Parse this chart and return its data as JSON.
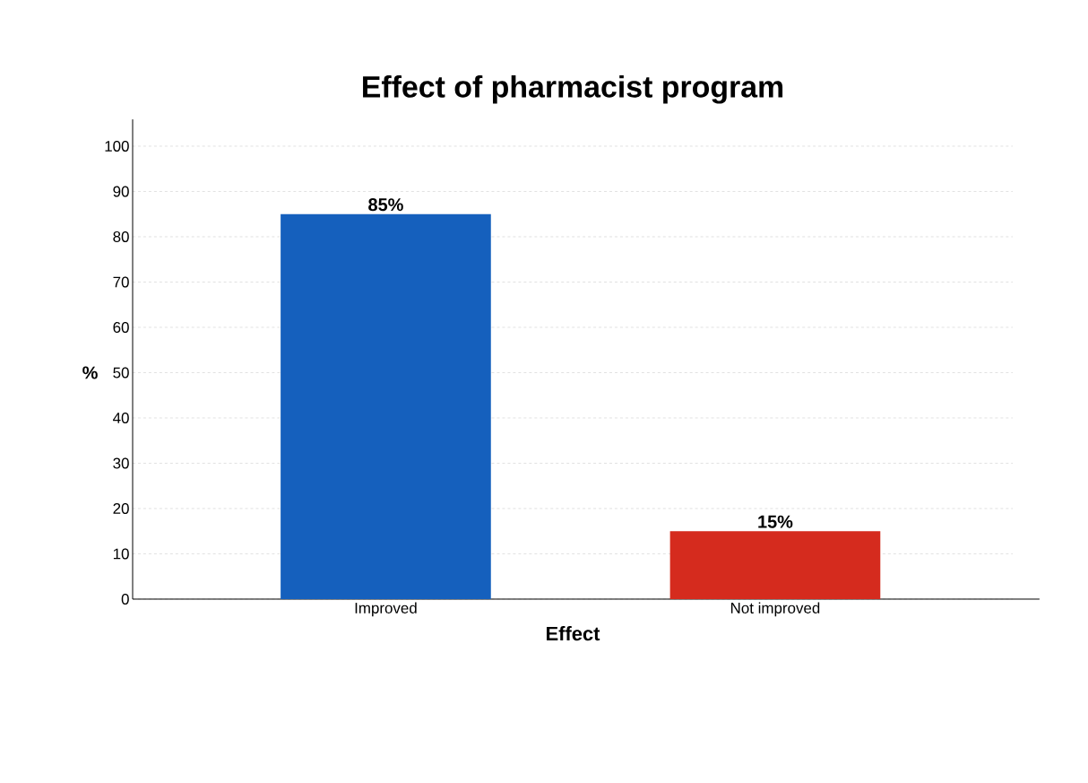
{
  "chart_data": {
    "type": "bar",
    "title": "Effect of pharmacist program",
    "xlabel": "Effect",
    "ylabel": "%",
    "categories": [
      "Improved",
      "Not improved"
    ],
    "values": [
      85,
      15
    ],
    "colors": [
      "#1560bd",
      "#d52b1e"
    ],
    "value_labels": [
      "85%",
      "15%"
    ],
    "ylim": [
      0,
      100
    ],
    "yticks": [
      0,
      10,
      20,
      30,
      40,
      50,
      60,
      70,
      80,
      90,
      100
    ],
    "grid": "y"
  }
}
